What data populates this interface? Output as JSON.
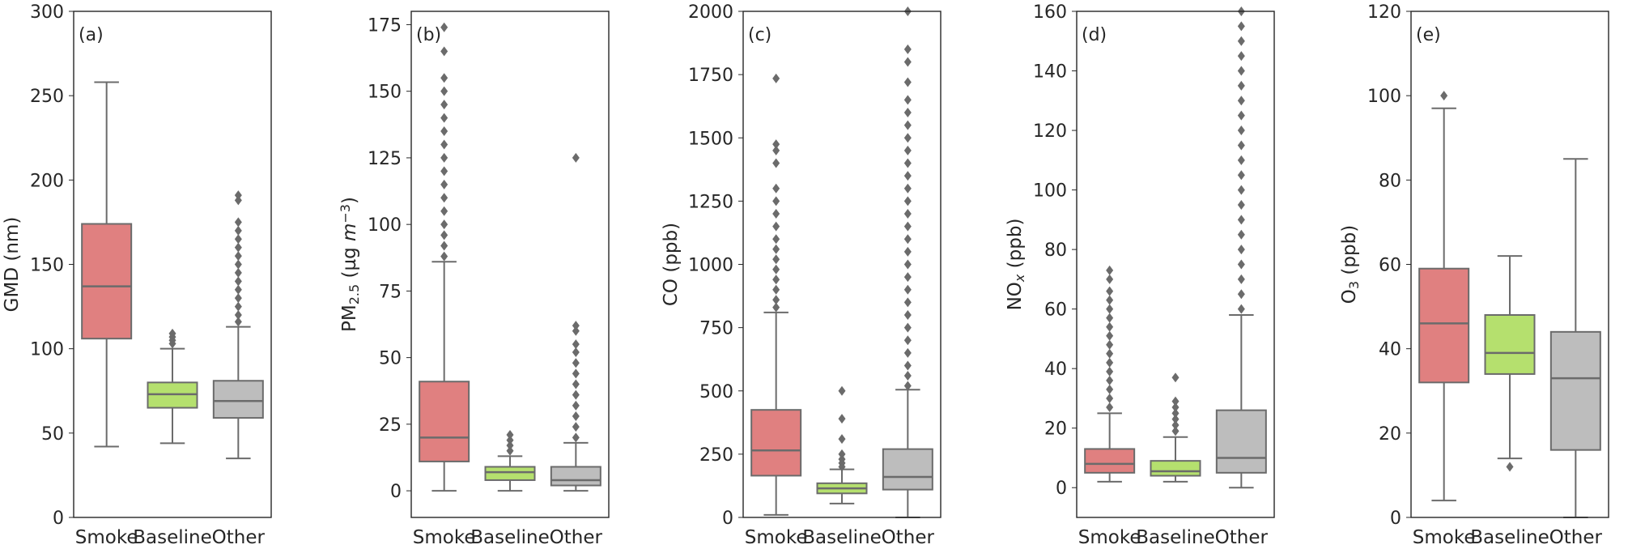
{
  "chart_data": [
    {
      "type": "box",
      "panel_label": "(a)",
      "ylabel": "GMD (nm)",
      "ylim": [
        0,
        300
      ],
      "yticks": [
        0,
        50,
        100,
        150,
        200,
        250,
        300
      ],
      "categories": [
        "Smoke",
        "Baseline",
        "Other"
      ],
      "colors": [
        "#e08080",
        "#b5e06e",
        "#bdbdbd"
      ],
      "boxes": [
        {
          "whislo": 42,
          "q1": 106,
          "median": 137,
          "q3": 174,
          "whishi": 258,
          "fliers": []
        },
        {
          "whislo": 44,
          "q1": 65,
          "median": 73,
          "q3": 80,
          "whishi": 100,
          "fliers": [
            103,
            105,
            107,
            109
          ]
        },
        {
          "whislo": 35,
          "q1": 59,
          "median": 69,
          "q3": 81,
          "whishi": 113,
          "fliers": [
            116,
            120,
            125,
            130,
            135,
            140,
            145,
            150,
            155,
            160,
            165,
            170,
            175,
            188,
            191
          ]
        }
      ]
    },
    {
      "type": "box",
      "panel_label": "(b)",
      "ylabel": "PM2.5 (µg m−3)",
      "ylim": [
        -10,
        180
      ],
      "yticks": [
        0,
        25,
        50,
        75,
        100,
        125,
        150,
        175
      ],
      "categories": [
        "Smoke",
        "Baseline",
        "Other"
      ],
      "colors": [
        "#e08080",
        "#b5e06e",
        "#bdbdbd"
      ],
      "boxes": [
        {
          "whislo": 0,
          "q1": 11,
          "median": 20,
          "q3": 41,
          "whishi": 86,
          "fliers": [
            88,
            92,
            96,
            100,
            105,
            110,
            115,
            120,
            125,
            130,
            135,
            140,
            145,
            150,
            155,
            165,
            174
          ]
        },
        {
          "whislo": 0,
          "q1": 4,
          "median": 7,
          "q3": 9,
          "whishi": 13,
          "fliers": [
            15,
            17,
            19,
            21
          ]
        },
        {
          "whislo": 0,
          "q1": 2,
          "median": 4,
          "q3": 9,
          "whishi": 18,
          "fliers": [
            20,
            24,
            28,
            32,
            36,
            40,
            44,
            48,
            52,
            55,
            60,
            62,
            125
          ]
        }
      ]
    },
    {
      "type": "box",
      "panel_label": "(c)",
      "ylabel": "CO (ppb)",
      "ylim": [
        0,
        2000
      ],
      "yticks": [
        0,
        250,
        500,
        750,
        1000,
        1250,
        1500,
        1750,
        2000
      ],
      "categories": [
        "Smoke",
        "Baseline",
        "Other"
      ],
      "colors": [
        "#e08080",
        "#b5e06e",
        "#bdbdbd"
      ],
      "boxes": [
        {
          "whislo": 10,
          "q1": 165,
          "median": 265,
          "q3": 425,
          "whishi": 810,
          "fliers": [
            830,
            860,
            900,
            940,
            980,
            1020,
            1060,
            1100,
            1150,
            1200,
            1250,
            1300,
            1400,
            1450,
            1475,
            1735
          ]
        },
        {
          "whislo": 55,
          "q1": 95,
          "median": 115,
          "q3": 135,
          "whishi": 190,
          "fliers": [
            200,
            215,
            230,
            250,
            310,
            390,
            500
          ]
        },
        {
          "whislo": 0,
          "q1": 110,
          "median": 160,
          "q3": 270,
          "whishi": 505,
          "fliers": [
            520,
            560,
            600,
            650,
            700,
            750,
            800,
            850,
            900,
            950,
            1000,
            1050,
            1100,
            1150,
            1200,
            1250,
            1300,
            1350,
            1400,
            1450,
            1500,
            1550,
            1600,
            1650,
            1720,
            1800,
            1850,
            2000
          ]
        }
      ]
    },
    {
      "type": "box",
      "panel_label": "(d)",
      "ylabel": "NOx (ppb)",
      "ylim": [
        -10,
        160
      ],
      "yticks": [
        0,
        20,
        40,
        60,
        80,
        100,
        120,
        140,
        160
      ],
      "categories": [
        "Smoke",
        "Baseline",
        "Other"
      ],
      "colors": [
        "#e08080",
        "#b5e06e",
        "#bdbdbd"
      ],
      "boxes": [
        {
          "whislo": 2,
          "q1": 5,
          "median": 8,
          "q3": 13,
          "whishi": 25,
          "fliers": [
            27,
            30,
            33,
            36,
            39,
            42,
            45,
            48,
            51,
            54,
            57,
            60,
            63,
            66,
            70,
            73
          ]
        },
        {
          "whislo": 2,
          "q1": 4,
          "median": 5.5,
          "q3": 9,
          "whishi": 17,
          "fliers": [
            19,
            21,
            23,
            25,
            27,
            29,
            37
          ]
        },
        {
          "whislo": 0,
          "q1": 5,
          "median": 10,
          "q3": 26,
          "whishi": 58,
          "fliers": [
            60,
            65,
            70,
            75,
            80,
            85,
            90,
            95,
            100,
            105,
            110,
            115,
            120,
            125,
            130,
            135,
            140,
            145,
            150,
            155,
            160
          ]
        }
      ]
    },
    {
      "type": "box",
      "panel_label": "(e)",
      "ylabel": "O3 (ppb)",
      "ylim": [
        0,
        120
      ],
      "yticks": [
        0,
        20,
        40,
        60,
        80,
        100,
        120
      ],
      "categories": [
        "Smoke",
        "Baseline",
        "Other"
      ],
      "colors": [
        "#e08080",
        "#b5e06e",
        "#bdbdbd"
      ],
      "boxes": [
        {
          "whislo": 4,
          "q1": 32,
          "median": 46,
          "q3": 59,
          "whishi": 97,
          "fliers": [
            100
          ]
        },
        {
          "whislo": 14,
          "q1": 34,
          "median": 39,
          "q3": 48,
          "whishi": 62,
          "fliers": [
            12
          ]
        },
        {
          "whislo": 0,
          "q1": 16,
          "median": 33,
          "q3": 44,
          "whishi": 85,
          "fliers": []
        }
      ]
    }
  ]
}
